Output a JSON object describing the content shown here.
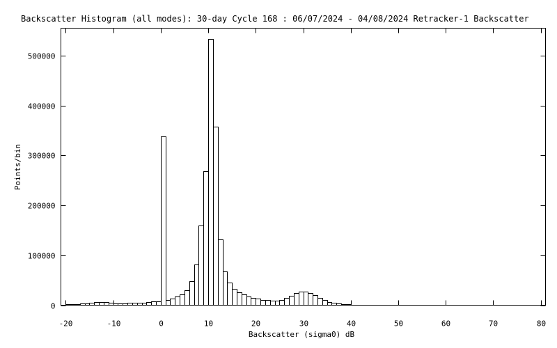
{
  "chart_data": {
    "type": "bar",
    "title": "Backscatter Histogram (all modes): 30-day Cycle 168 : 06/07/2024 - 04/08/2024 Retracker-1 Backscatter",
    "xlabel": "Backscatter (sigma0) dB",
    "ylabel": "Points/bin",
    "xlim": [
      -21,
      81
    ],
    "ylim": [
      0,
      555000
    ],
    "x_ticks": [
      -20,
      -10,
      0,
      10,
      20,
      30,
      40,
      50,
      60,
      70,
      80
    ],
    "x_tick_labels": [
      "-20",
      "-10",
      "0",
      "10",
      "20",
      "30",
      "40",
      "50",
      "60",
      "70",
      "80"
    ],
    "y_ticks": [
      0,
      100000,
      200000,
      300000,
      400000,
      500000
    ],
    "y_tick_labels": [
      "0",
      "100000",
      "200000",
      "300000",
      "400000",
      "500000"
    ],
    "bin_width": 1,
    "x": [
      -20,
      -19,
      -18,
      -17,
      -16,
      -15,
      -14,
      -13,
      -12,
      -11,
      -10,
      -9,
      -8,
      -7,
      -6,
      -5,
      -4,
      -3,
      -2,
      -1,
      0,
      1,
      2,
      3,
      4,
      5,
      6,
      7,
      8,
      9,
      10,
      11,
      12,
      13,
      14,
      15,
      16,
      17,
      18,
      19,
      20,
      21,
      22,
      23,
      24,
      25,
      26,
      27,
      28,
      29,
      30,
      31,
      32,
      33,
      34,
      35,
      36,
      37,
      38,
      39,
      40,
      41
    ],
    "values": [
      1500,
      1800,
      2500,
      3000,
      4000,
      5500,
      6500,
      6500,
      6000,
      5000,
      4000,
      4000,
      4000,
      4500,
      5000,
      5000,
      5500,
      6000,
      7000,
      8000,
      338000,
      10000,
      13000,
      17000,
      22000,
      30000,
      48000,
      82000,
      160000,
      268000,
      533000,
      358000,
      132000,
      67000,
      45000,
      33000,
      26000,
      22000,
      18000,
      15000,
      13000,
      11000,
      10000,
      9000,
      9000,
      11000,
      14000,
      19000,
      24000,
      27000,
      27000,
      24000,
      20000,
      15000,
      10000,
      6000,
      4500,
      3000,
      2000,
      1500,
      1000,
      500
    ]
  }
}
